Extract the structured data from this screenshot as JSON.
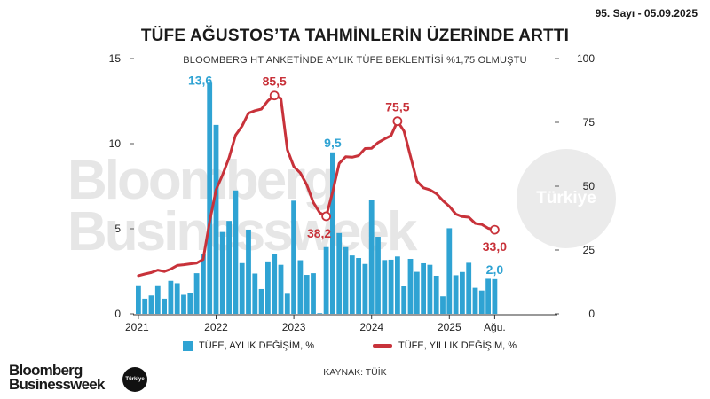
{
  "issue": "95. Sayı - 05.09.2025",
  "title": "TÜFE AĞUSTOS’TA TAHMİNLERİN ÜZERİNDE ARTTI",
  "subtitle": "BLOOMBERG HT ANKETİNDE AYLIK TÜFE BEKLENTİSİ %1,75 OLMUŞTU",
  "watermark": {
    "line1": "Bloomberg",
    "line2": "Businessweek",
    "badge": "Türkiye"
  },
  "footer": {
    "source": "KAYNAK: TÜİK",
    "logo_line1": "Bloomberg",
    "logo_line2": "Businessweek",
    "logo_badge": "Türkiye"
  },
  "chart_data": {
    "type": "bar+line",
    "x_ticks": [
      "2021",
      "2022",
      "2023",
      "2024",
      "2025",
      "Ağu."
    ],
    "y_left": {
      "ticks": [
        "0",
        "5",
        "10",
        "15"
      ],
      "lim": [
        0,
        15
      ]
    },
    "y_right": {
      "ticks": [
        "0",
        "25",
        "50",
        "75",
        "100"
      ],
      "lim": [
        0,
        100
      ]
    },
    "legend_position": "bottom",
    "colors": {
      "bar": "#2fa3d3",
      "line": "#c8323a"
    },
    "series": [
      {
        "name": "TÜFE, AYLIK DEĞİŞİM, %",
        "type": "bar",
        "axis": "left",
        "values": [
          1.68,
          0.89,
          1.08,
          1.68,
          0.89,
          1.94,
          1.8,
          1.12,
          1.25,
          2.39,
          3.51,
          13.58,
          11.1,
          4.81,
          5.46,
          7.25,
          2.98,
          4.95,
          2.37,
          1.46,
          3.08,
          3.54,
          2.88,
          1.18,
          6.65,
          3.15,
          2.29,
          2.39,
          0.04,
          3.92,
          9.49,
          4.75,
          3.92,
          3.43,
          3.28,
          2.93,
          6.7,
          4.53,
          3.16,
          3.18,
          3.37,
          1.64,
          3.23,
          2.47,
          2.97,
          2.88,
          2.24,
          1.03,
          5.03,
          2.27,
          2.46,
          3.0,
          1.53,
          1.37,
          2.06,
          2.04
        ]
      },
      {
        "name": "TÜFE, YILLIK DEĞİŞİM, %",
        "type": "line",
        "axis": "right",
        "values": [
          14.97,
          15.61,
          16.19,
          17.14,
          16.59,
          17.53,
          18.95,
          19.25,
          19.58,
          19.89,
          21.31,
          36.08,
          48.69,
          54.44,
          61.14,
          69.97,
          73.5,
          78.62,
          79.6,
          80.21,
          83.45,
          85.51,
          84.39,
          64.27,
          57.68,
          55.18,
          50.51,
          43.68,
          39.59,
          38.21,
          47.83,
          58.94,
          61.53,
          61.36,
          61.98,
          64.77,
          64.86,
          67.07,
          68.5,
          69.8,
          75.45,
          71.6,
          61.78,
          51.97,
          49.38,
          48.58,
          47.09,
          44.38,
          42.12,
          39.05,
          38.1,
          37.86,
          35.41,
          35.05,
          33.52,
          32.95
        ]
      }
    ],
    "annotations": [
      {
        "series": 0,
        "index": 11,
        "label": "13,6"
      },
      {
        "series": 0,
        "index": 30,
        "label": "9,5"
      },
      {
        "series": 0,
        "index": 55,
        "label": "2,0"
      },
      {
        "series": 1,
        "index": 21,
        "label": "85,5"
      },
      {
        "series": 1,
        "index": 29,
        "label": "38,2"
      },
      {
        "series": 1,
        "index": 40,
        "label": "75,5"
      },
      {
        "series": 1,
        "index": 55,
        "label": "33,0"
      }
    ]
  }
}
